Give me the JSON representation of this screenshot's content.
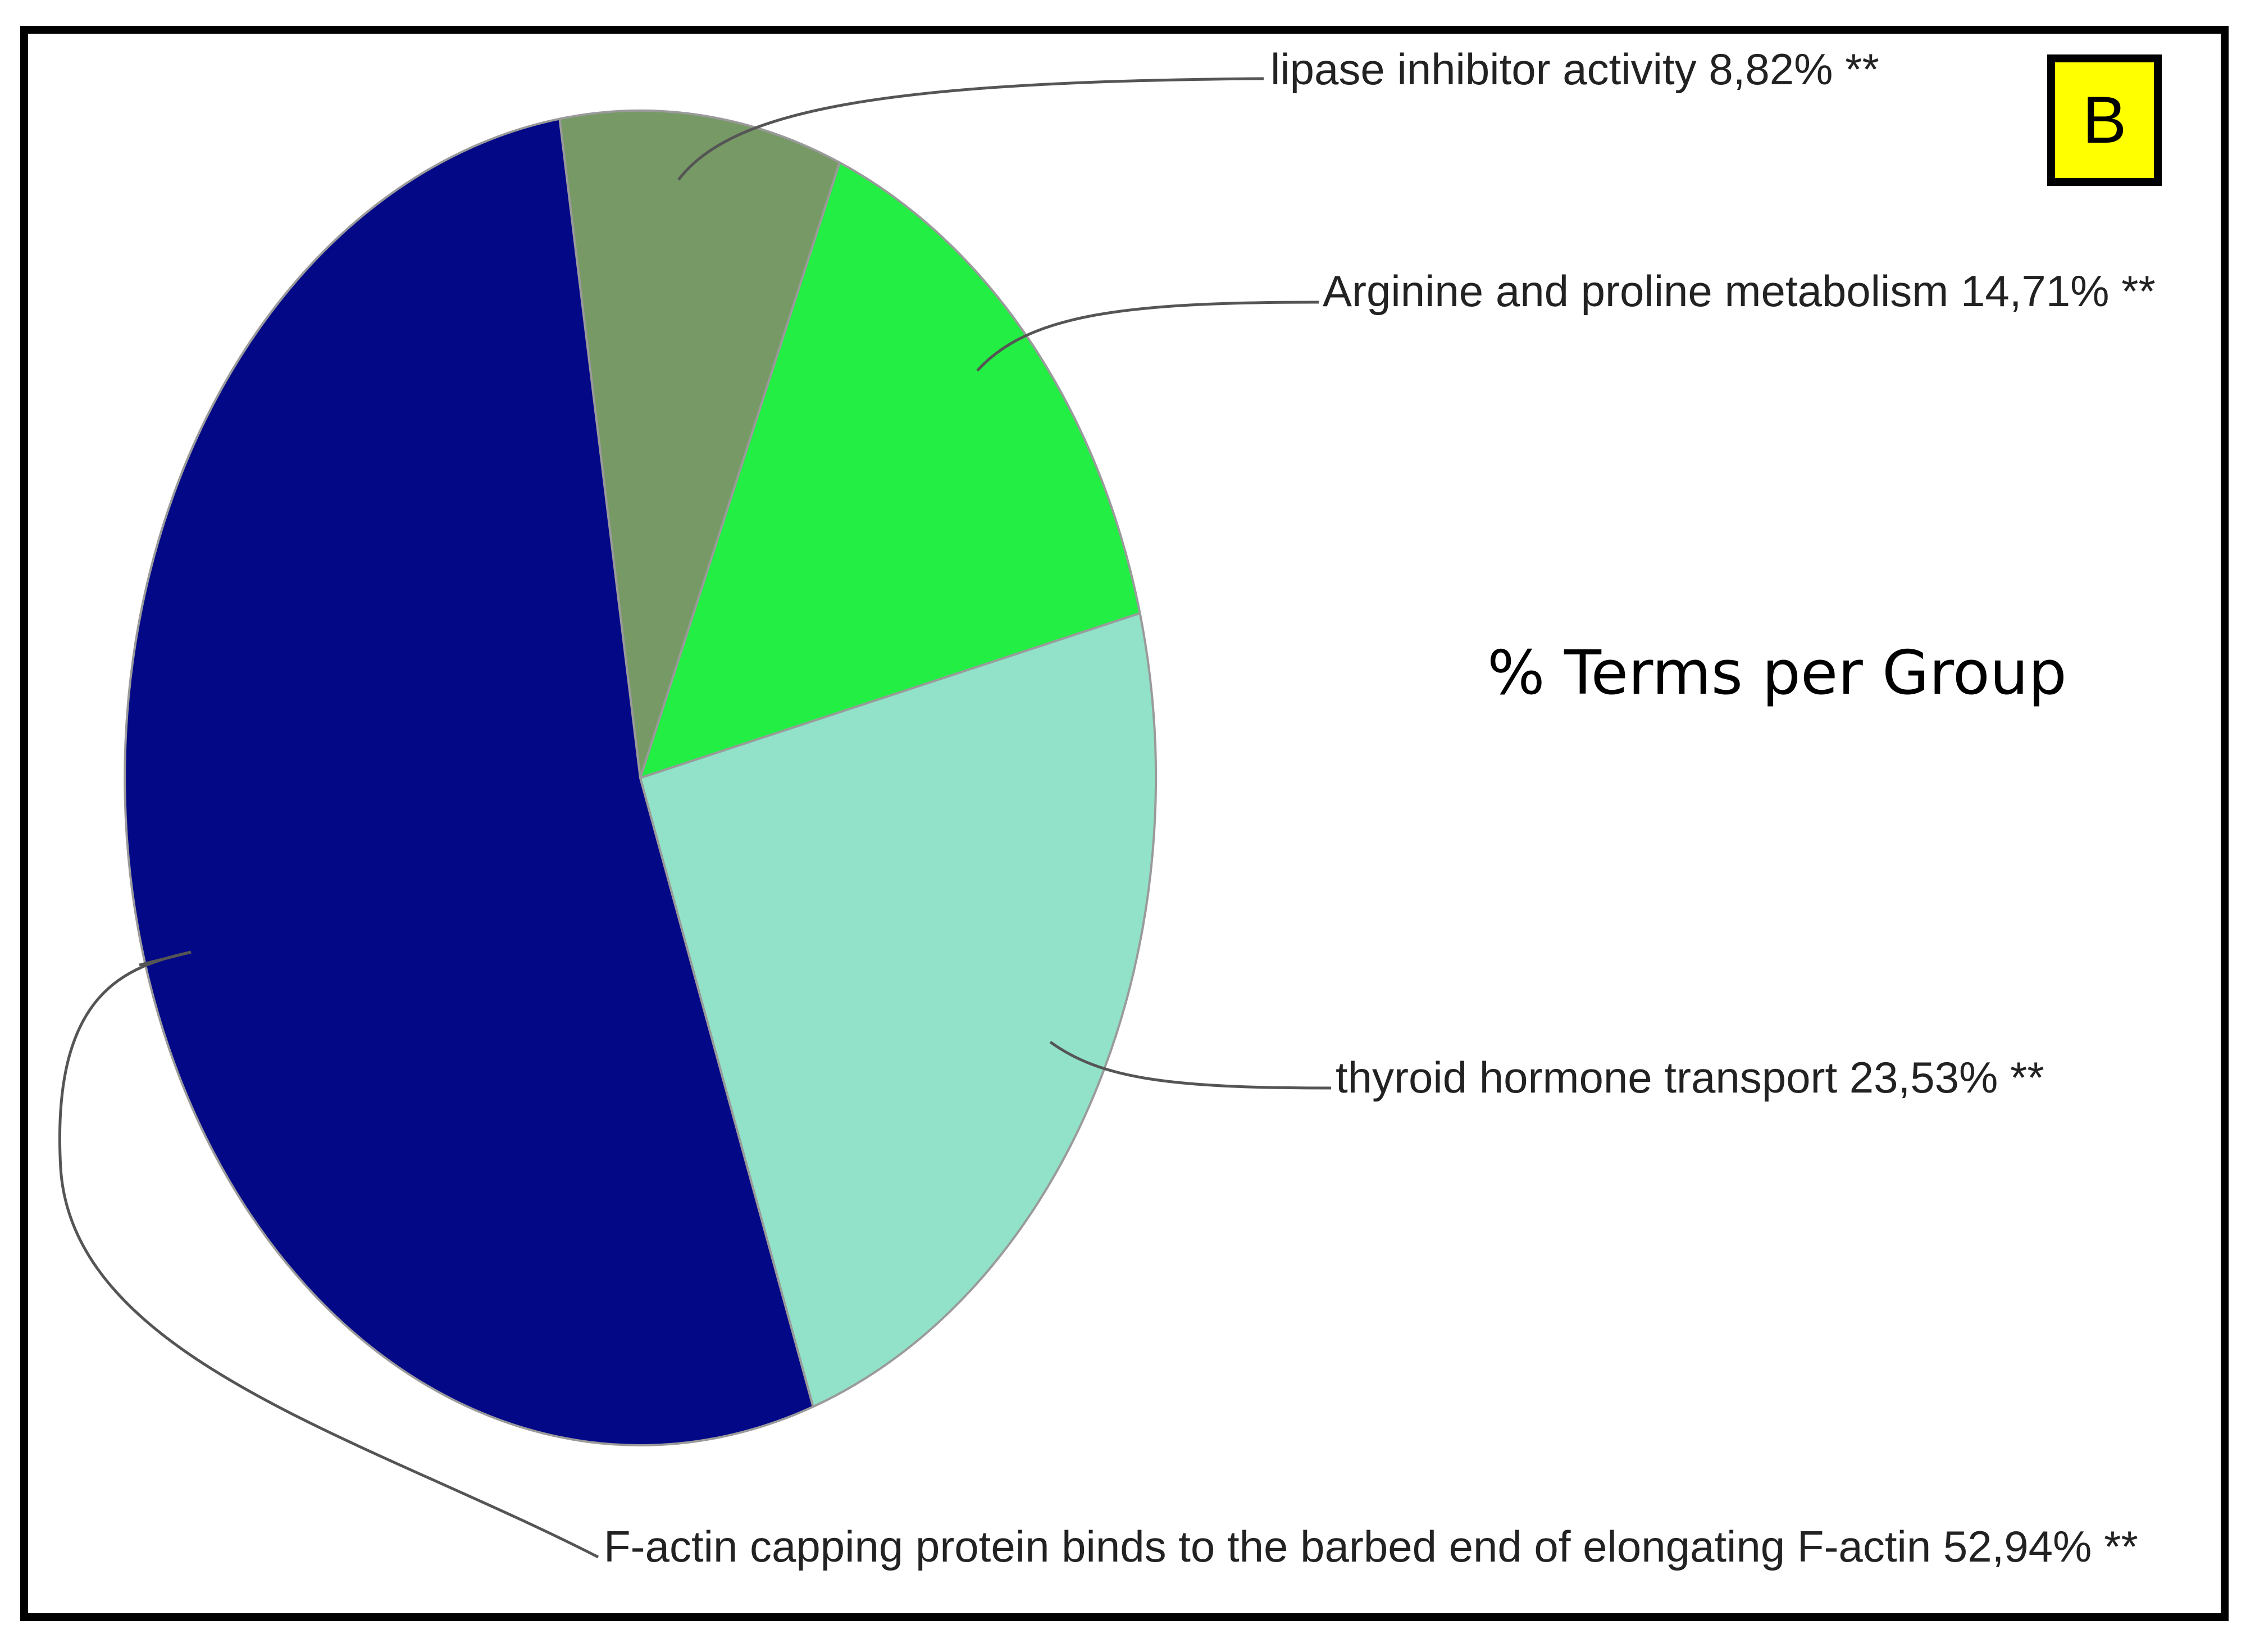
{
  "panel_letter": "B",
  "chart_data": {
    "type": "pie",
    "title": "% Terms per Group",
    "slices": [
      {
        "label": "lipase inhibitor activity 8,82% **",
        "value": 8.82,
        "color": "#779966"
      },
      {
        "label": "Arginine and proline metabolism 14,71% **",
        "value": 14.71,
        "color": "#22ee44"
      },
      {
        "label": "thyroid hormone transport 23,53% **",
        "value": 23.53,
        "color": "#91e2c8"
      },
      {
        "label": "F-actin capping protein binds to the barbed end of elongating F-actin 52,94% **",
        "value": 52.94,
        "color": "#020886"
      }
    ]
  }
}
